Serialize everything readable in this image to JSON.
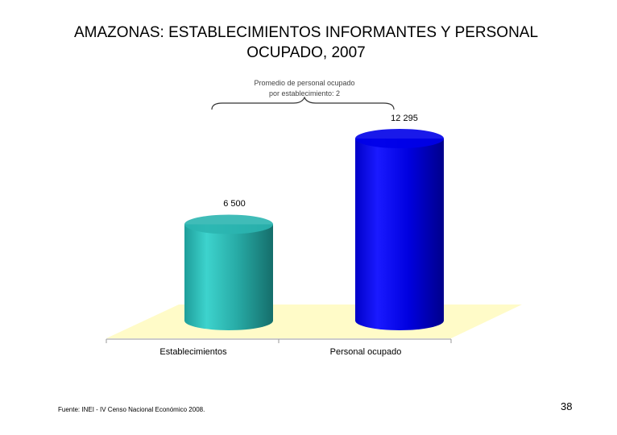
{
  "slide": {
    "title_line1": "AMAZONAS: ESTABLECIMIENTOS INFORMANTES Y PERSONAL",
    "title_line2": "OCUPADO, 2007",
    "source": "Fuente: INEI - IV Censo Nacional Económico 2008.",
    "page_number": "38"
  },
  "chart_data": {
    "type": "bar",
    "style": "3d-cylinder",
    "categories": [
      "Establecimientos",
      "Personal ocupado"
    ],
    "values": [
      6500,
      12295
    ],
    "value_labels": [
      "6 500",
      "12 295"
    ],
    "colors": [
      "#2bb5b0",
      "#0000e8"
    ],
    "floor_color": "#fffbc8",
    "annotation": {
      "line1": "Promedio de personal ocupado",
      "line2": "por establecimiento: 2"
    },
    "ylim": [
      0,
      12295
    ],
    "grid": false,
    "legend": "none"
  }
}
